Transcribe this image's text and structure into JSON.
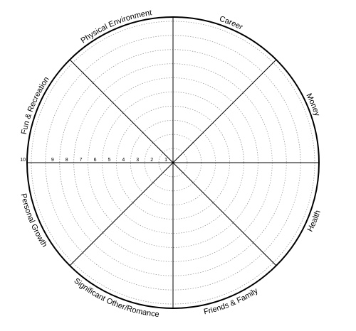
{
  "wheel": {
    "segments": [
      "Career",
      "Money",
      "Health",
      "Friends & Family",
      "Significant Other/Romance",
      "Personal Growth",
      "Fun & Recreation",
      "Physical Environment"
    ],
    "scale_labels": [
      "1",
      "2",
      "3",
      "4",
      "5",
      "6",
      "7",
      "8",
      "9",
      "10"
    ],
    "colors": {
      "outline": "#000000",
      "ring": "#9a9a9a",
      "spoke": "#000000"
    }
  }
}
